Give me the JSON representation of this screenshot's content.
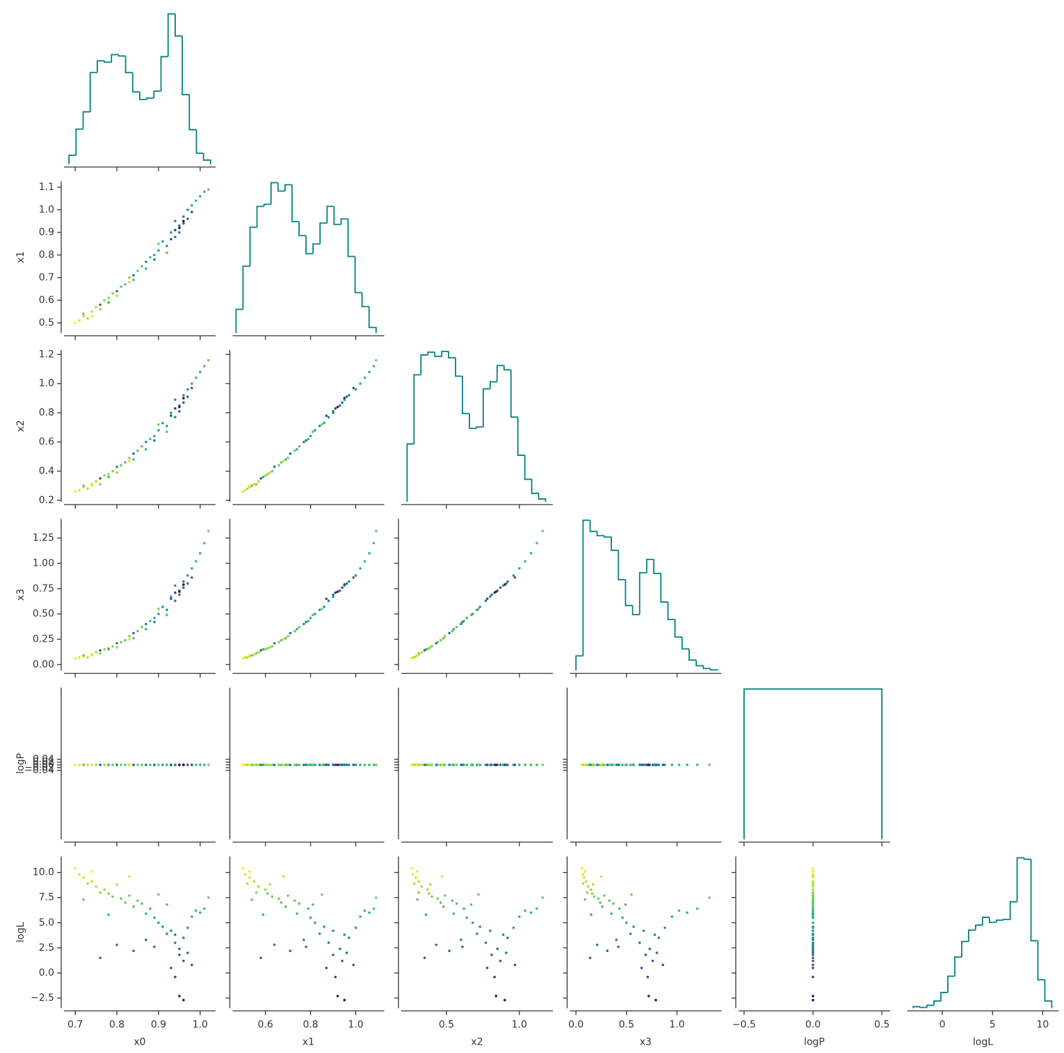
{
  "chart_data": {
    "type": "corner",
    "variables": [
      "x0",
      "x1",
      "x2",
      "x3",
      "logP",
      "logL"
    ],
    "hist_color": "#008080",
    "colormap": "viridis",
    "color_by": "logL",
    "axes": [
      {
        "lim": [
          0.673,
          1.037
        ],
        "xticks": [
          0.7,
          0.8,
          0.9,
          {
            "value": 1,
            "label": "1.0"
          }
        ]
      },
      {
        "lim": [
          0.455,
          1.126
        ],
        "xticks": [
          0.6,
          0.8,
          {
            "value": 1,
            "label": "1.0"
          }
        ],
        "yticks": [
          0.5,
          0.6,
          0.7,
          0.8,
          0.9,
          {
            "value": 1,
            "label": "1.0"
          },
          1.1
        ]
      },
      {
        "lim": [
          0.19,
          1.23
        ],
        "xticks": [
          0.5,
          {
            "value": 1,
            "label": "1.0"
          }
        ],
        "yticks": [
          0.2,
          0.4,
          0.6,
          0.8,
          {
            "value": 1,
            "label": "1.0"
          },
          1.2
        ]
      },
      {
        "lim": [
          -0.06,
          1.44
        ],
        "xticks": [
          {
            "value": 0,
            "label": "0.0"
          },
          0.5,
          {
            "value": 1,
            "label": "1.0"
          }
        ],
        "yticks": [
          {
            "value": 0,
            "label": "0.00"
          },
          0.25,
          {
            "value": 0.5,
            "label": "0.50"
          },
          0.75,
          {
            "value": 1,
            "label": "1.00"
          },
          1.25
        ]
      },
      {
        "lim": [
          -0.54,
          0.56
        ],
        "xticks": [
          {
            "value": -0.5,
            "label": "−0.5"
          },
          {
            "value": 0,
            "label": "0.0"
          },
          0.5
        ],
        "yticks": [
          {
            "value": -0.04,
            "label": "−0.04"
          },
          {
            "value": -0.02,
            "label": "−0.02"
          },
          {
            "value": 0,
            "label": "0.00"
          },
          0.02,
          0.04
        ]
      },
      {
        "lim": [
          -3.5,
          11.6
        ],
        "xticks": [
          0,
          5,
          10
        ],
        "yticks": [
          {
            "value": -2.5,
            "label": "−2.5"
          },
          {
            "value": 0,
            "label": "0.0"
          },
          2.5,
          {
            "value": 5,
            "label": "5.0"
          },
          7.5,
          {
            "value": 10,
            "label": "10.0"
          }
        ]
      }
    ],
    "histograms": [
      {
        "bins": [
          0.685,
          0.702,
          0.719,
          0.736,
          0.753,
          0.77,
          0.787,
          0.804,
          0.821,
          0.838,
          0.855,
          0.872,
          0.889,
          0.906,
          0.923,
          0.94,
          0.957,
          0.974,
          0.991,
          1.008,
          1.025
        ],
        "counts": [
          13,
          51,
          76,
          133,
          150,
          148,
          159,
          157,
          133,
          105,
          94,
          96,
          106,
          156,
          218,
          186,
          101,
          50,
          16,
          6
        ]
      },
      {
        "bins": [
          0.47,
          0.501,
          0.532,
          0.563,
          0.594,
          0.625,
          0.656,
          0.687,
          0.718,
          0.749,
          0.78,
          0.811,
          0.842,
          0.873,
          0.904,
          0.935,
          0.966,
          0.997,
          1.028,
          1.059,
          1.09
        ],
        "counts": [
          34,
          96,
          152,
          182,
          185,
          216,
          204,
          213,
          160,
          140,
          114,
          128,
          158,
          182,
          156,
          164,
          110,
          58,
          38,
          8
        ]
      },
      {
        "bins": [
          0.23,
          0.2775,
          0.325,
          0.3725,
          0.42,
          0.4675,
          0.515,
          0.5625,
          0.61,
          0.6575,
          0.705,
          0.7525,
          0.8,
          0.8475,
          0.895,
          0.9425,
          0.99,
          1.0375,
          1.085,
          1.1325,
          1.18
        ],
        "counts": [
          82,
          180,
          208,
          212,
          206,
          213,
          204,
          178,
          125,
          104,
          106,
          160,
          170,
          193,
          187,
          120,
          66,
          32,
          12,
          4
        ]
      },
      {
        "bins": [
          0,
          0.07,
          0.14,
          0.21,
          0.28,
          0.35,
          0.42,
          0.49,
          0.56,
          0.63,
          0.7,
          0.77,
          0.84,
          0.91,
          0.98,
          1.05,
          1.12,
          1.19,
          1.26,
          1.33,
          1.4
        ],
        "counts": [
          21,
          215,
          199,
          193,
          191,
          172,
          130,
          93,
          80,
          140,
          159,
          139,
          98,
          73,
          48,
          31,
          15,
          7,
          3,
          1
        ]
      },
      {
        "bins": [
          -0.5,
          0.5
        ],
        "counts": [
          5000
        ]
      },
      {
        "bins": [
          -2.9,
          -2.21,
          -1.52,
          -0.83,
          -0.14,
          0.55,
          1.24,
          1.93,
          2.62,
          3.31,
          4.0,
          4.69,
          5.38,
          6.07,
          6.76,
          7.45,
          8.14,
          8.83,
          9.52,
          10.21,
          10.9
        ],
        "counts": [
          2,
          1,
          4,
          10,
          22,
          45,
          72,
          94,
          110,
          117,
          128,
          121,
          124,
          125,
          150,
          212,
          210,
          95,
          40,
          10
        ]
      }
    ],
    "samples": [
      [
        0.7,
        0.71,
        0.72,
        0.73,
        0.74,
        0.75,
        0.76,
        0.77,
        0.78,
        0.79,
        0.8,
        0.81,
        0.82,
        0.83,
        0.84,
        0.85,
        0.86,
        0.87,
        0.88,
        0.89,
        0.9,
        0.91,
        0.92,
        0.93,
        0.94,
        0.95,
        0.95,
        0.96,
        0.96,
        0.97,
        0.98,
        0.99,
        1.0,
        1.01,
        1.02,
        0.76,
        0.8,
        0.84,
        0.78,
        0.87,
        0.93,
        0.94,
        0.95,
        0.96,
        0.72,
        0.74,
        0.83,
        0.9,
        0.92,
        0.97,
        0.94,
        0.89,
        0.98
      ],
      [
        0.5,
        0.51,
        0.53,
        0.52,
        0.55,
        0.57,
        0.56,
        0.6,
        0.61,
        0.63,
        0.62,
        0.66,
        0.67,
        0.7,
        0.69,
        0.73,
        0.75,
        0.74,
        0.79,
        0.8,
        0.82,
        0.86,
        0.84,
        0.9,
        0.88,
        0.93,
        0.9,
        0.97,
        0.94,
        1.0,
        1.02,
        1.04,
        1.06,
        1.08,
        1.09,
        0.58,
        0.64,
        0.71,
        0.59,
        0.77,
        0.87,
        0.91,
        0.92,
        0.95,
        0.54,
        0.53,
        0.68,
        0.85,
        0.81,
        0.96,
        0.95,
        0.78,
        0.99
      ],
      [
        0.26,
        0.27,
        0.29,
        0.28,
        0.31,
        0.33,
        0.31,
        0.37,
        0.38,
        0.4,
        0.39,
        0.44,
        0.46,
        0.49,
        0.48,
        0.54,
        0.57,
        0.55,
        0.62,
        0.64,
        0.68,
        0.73,
        0.71,
        0.8,
        0.77,
        0.85,
        0.81,
        0.92,
        0.87,
        0.96,
        1.0,
        1.04,
        1.08,
        1.12,
        1.16,
        0.35,
        0.43,
        0.52,
        0.36,
        0.6,
        0.78,
        0.83,
        0.84,
        0.9,
        0.3,
        0.3,
        0.47,
        0.72,
        0.67,
        0.91,
        0.89,
        0.61,
        0.97
      ],
      [
        0.06,
        0.07,
        0.08,
        0.07,
        0.1,
        0.12,
        0.11,
        0.15,
        0.16,
        0.18,
        0.17,
        0.22,
        0.24,
        0.28,
        0.26,
        0.33,
        0.37,
        0.35,
        0.43,
        0.46,
        0.5,
        0.57,
        0.54,
        0.67,
        0.63,
        0.73,
        0.69,
        0.82,
        0.76,
        0.88,
        0.95,
        1.02,
        1.1,
        1.2,
        1.32,
        0.14,
        0.21,
        0.31,
        0.15,
        0.4,
        0.65,
        0.71,
        0.72,
        0.79,
        0.09,
        0.09,
        0.25,
        0.55,
        0.49,
        0.8,
        0.78,
        0.42,
        0.86
      ],
      [
        0,
        0,
        0,
        0,
        0,
        0,
        0,
        0,
        0,
        0,
        0,
        0,
        0,
        0,
        0,
        0,
        0,
        0,
        0,
        0,
        0,
        0,
        0,
        0,
        0,
        0,
        0,
        0,
        0,
        0,
        0,
        0,
        0,
        0,
        0,
        0,
        0,
        0,
        0,
        0,
        0,
        0,
        0,
        0,
        0,
        0,
        0,
        0,
        0,
        0,
        0,
        0,
        0
      ],
      [
        10.4,
        9.8,
        9.5,
        8.9,
        9.1,
        8.6,
        8.0,
        8.3,
        7.9,
        7.6,
        8.8,
        7.4,
        7.0,
        7.7,
        6.6,
        7.2,
        6.9,
        5.9,
        6.4,
        5.5,
        5.0,
        4.6,
        3.9,
        4.2,
        3.0,
        2.4,
        1.8,
        3.5,
        1.2,
        4.5,
        5.6,
        6.2,
        6.0,
        6.4,
        7.5,
        1.5,
        2.8,
        2.2,
        5.8,
        3.3,
        0.5,
        -0.4,
        -2.3,
        -2.7,
        7.3,
        10.1,
        9.6,
        7.8,
        6.8,
        2.0,
        3.8,
        2.6,
        0.8
      ]
    ]
  }
}
